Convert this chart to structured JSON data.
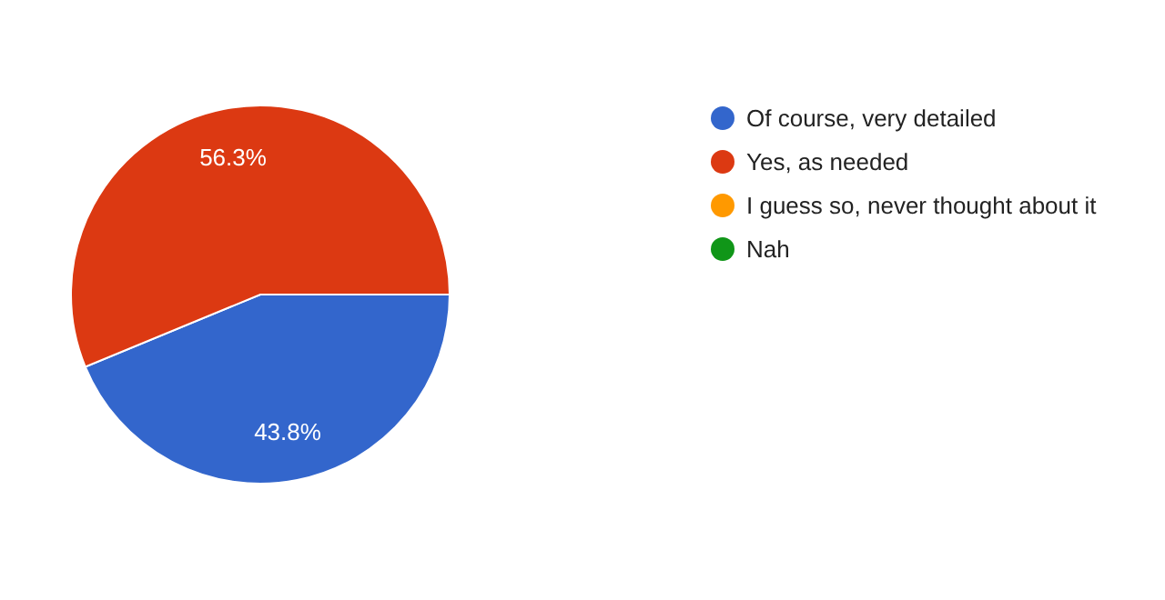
{
  "chart_data": {
    "type": "pie",
    "categories": [
      "Of course, very detailed",
      "Yes, as needed",
      "I guess so, never thought about it",
      "Nah"
    ],
    "values": [
      43.8,
      56.3,
      0,
      0
    ],
    "colors": [
      "#3366cc",
      "#dc3912",
      "#ff9900",
      "#109618"
    ],
    "value_labels": [
      "43.8%",
      "56.3%",
      null,
      null
    ],
    "legend": "right"
  }
}
